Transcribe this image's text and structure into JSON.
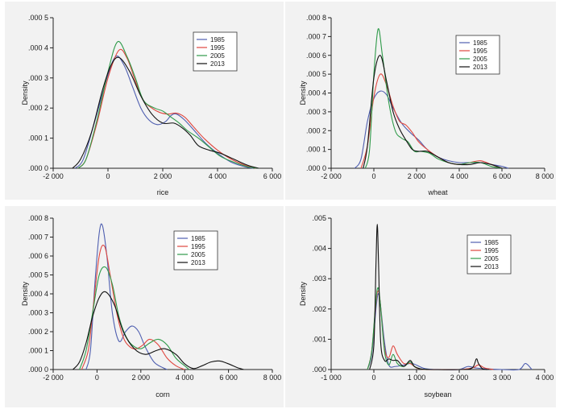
{
  "series_colors": {
    "1985": "#4f5fb0",
    "1995": "#e0463e",
    "2005": "#2e9a49",
    "2013": "#111111"
  },
  "chart_data": [
    {
      "type": "line",
      "title": "",
      "xlabel": "rice",
      "ylabel": "Density",
      "xlim": [
        -2000,
        6000
      ],
      "ylim": [
        0,
        0.0005
      ],
      "xticks": [
        -2000,
        0,
        2000,
        4000,
        6000
      ],
      "xtick_labels": [
        "-2 000",
        "0",
        "2 000",
        "4 000",
        "6 000"
      ],
      "yticks": [
        0,
        0.0001,
        0.0002,
        0.0003,
        0.0004,
        0.0005
      ],
      "ytick_labels": [
        ".000 0",
        ".000 1",
        ".000 2",
        ".000 3",
        ".000 4",
        ".000 5"
      ],
      "legend": [
        "1985",
        "1995",
        "2005",
        "2013"
      ],
      "series": [
        {
          "name": "1985",
          "x": [
            -1200,
            -900,
            -500,
            0,
            300,
            600,
            900,
            1200,
            1500,
            1800,
            2100,
            2300,
            2500,
            2800,
            3200,
            3600,
            4000,
            4500,
            5000,
            5300
          ],
          "y": [
            0,
            3e-05,
            0.00015,
            0.00031,
            0.000372,
            0.00034,
            0.00027,
            0.0002,
            0.00016,
            0.000145,
            0.000155,
            0.000175,
            0.00018,
            0.00016,
            0.00012,
            8e-05,
            5e-05,
            2e-05,
            5e-06,
            0
          ]
        },
        {
          "name": "1995",
          "x": [
            -1100,
            -800,
            -400,
            0,
            400,
            700,
            1000,
            1300,
            1600,
            1900,
            2200,
            2500,
            2800,
            3100,
            3500,
            4000,
            4500,
            5000,
            5400
          ],
          "y": [
            0,
            3e-05,
            0.00015,
            0.0003,
            0.000392,
            0.000365,
            0.00029,
            0.000225,
            0.0002,
            0.000185,
            0.00018,
            0.000183,
            0.00017,
            0.00014,
            0.0001,
            6e-05,
            3e-05,
            1e-05,
            0
          ]
        },
        {
          "name": "2005",
          "x": [
            -1100,
            -800,
            -400,
            0,
            350,
            700,
            1000,
            1300,
            1700,
            2000,
            2300,
            2600,
            2900,
            3300,
            3700,
            4100,
            4600,
            5100,
            5500
          ],
          "y": [
            0,
            3e-05,
            0.00016,
            0.00032,
            0.00042,
            0.00037,
            0.0003,
            0.000225,
            0.0002,
            0.00019,
            0.00017,
            0.00015,
            0.000125,
            0.0001,
            7e-05,
            4e-05,
            2e-05,
            5e-06,
            0
          ]
        },
        {
          "name": "2013",
          "x": [
            -1300,
            -1000,
            -600,
            -200,
            100,
            400,
            800,
            1200,
            1600,
            2000,
            2400,
            2700,
            3000,
            3300,
            3700,
            4100,
            4600,
            5100,
            5500
          ],
          "y": [
            0,
            3e-05,
            0.00012,
            0.00026,
            0.00034,
            0.000368,
            0.00032,
            0.00024,
            0.00018,
            0.00015,
            0.00015,
            0.000135,
            0.00011,
            7.5e-05,
            6e-05,
            5e-05,
            3e-05,
            1e-05,
            0
          ]
        }
      ]
    },
    {
      "type": "line",
      "title": "",
      "xlabel": "wheat",
      "ylabel": "Density",
      "xlim": [
        -2000,
        8000
      ],
      "ylim": [
        0,
        0.0008
      ],
      "xticks": [
        -2000,
        0,
        2000,
        4000,
        6000,
        8000
      ],
      "xtick_labels": [
        "-2 000",
        "0",
        "2 000",
        "4 000",
        "6 000",
        "8 000"
      ],
      "yticks": [
        0,
        0.0001,
        0.0002,
        0.0003,
        0.0004,
        0.0005,
        0.0006,
        0.0007,
        0.0008
      ],
      "ytick_labels": [
        ".000 0",
        ".000 1",
        ".000 2",
        ".000 3",
        ".000 4",
        ".000 5",
        ".000 6",
        ".000 7",
        ".000 8"
      ],
      "legend": [
        "1985",
        "1995",
        "2005",
        "2013"
      ],
      "series": [
        {
          "name": "1985",
          "x": [
            -900,
            -600,
            -300,
            0,
            300,
            600,
            900,
            1300,
            1700,
            2100,
            2500,
            3000,
            3500,
            4000,
            4500,
            5000,
            5500,
            6000,
            6300
          ],
          "y": [
            0,
            5e-05,
            0.00025,
            0.00037,
            0.00041,
            0.00039,
            0.00032,
            0.00024,
            0.00019,
            0.00015,
            0.0001,
            6e-05,
            4e-05,
            3e-05,
            3e-05,
            3e-05,
            2e-05,
            1e-05,
            0
          ]
        },
        {
          "name": "1995",
          "x": [
            -600,
            -300,
            0,
            300,
            600,
            900,
            1200,
            1500,
            1800,
            2100,
            2500,
            3000,
            3500,
            4000,
            4500,
            5000,
            5500,
            6000
          ],
          "y": [
            0,
            0.00012,
            0.00038,
            0.0005,
            0.00044,
            0.00033,
            0.00025,
            0.00023,
            0.00019,
            0.00014,
            0.0001,
            6e-05,
            3e-05,
            2e-05,
            3e-05,
            4e-05,
            2e-05,
            0
          ]
        },
        {
          "name": "2005",
          "x": [
            -400,
            -200,
            0,
            200,
            400,
            700,
            1000,
            1300,
            1600,
            1900,
            2200,
            2600,
            3000,
            3500,
            4000,
            4500,
            5000,
            5500,
            6000
          ],
          "y": [
            0,
            0.0001,
            0.0005,
            0.00074,
            0.0006,
            0.00035,
            0.0002,
            0.00016,
            0.00014,
            9e-05,
            9e-05,
            8e-05,
            5e-05,
            3e-05,
            2e-05,
            3e-05,
            3e-05,
            1e-05,
            0
          ]
        },
        {
          "name": "2013",
          "x": [
            -500,
            -300,
            0,
            300,
            600,
            900,
            1200,
            1500,
            1800,
            2100,
            2500,
            3000,
            3500,
            4000,
            4500,
            5000,
            5500,
            6000
          ],
          "y": [
            0,
            0.00012,
            0.00048,
            0.0006,
            0.00046,
            0.0003,
            0.00021,
            0.00015,
            0.0001,
            9e-05,
            9e-05,
            6e-05,
            3e-05,
            2e-05,
            2e-05,
            3e-05,
            2e-05,
            0
          ]
        }
      ]
    },
    {
      "type": "line",
      "title": "",
      "xlabel": "corn",
      "ylabel": "Density",
      "xlim": [
        -2000,
        8000
      ],
      "ylim": [
        0,
        0.0008
      ],
      "xticks": [
        -2000,
        0,
        2000,
        4000,
        6000,
        8000
      ],
      "xtick_labels": [
        "-2 000",
        "0",
        "2 000",
        "4 000",
        "6 000",
        "8 000"
      ],
      "yticks": [
        0,
        0.0001,
        0.0002,
        0.0003,
        0.0004,
        0.0005,
        0.0006,
        0.0007,
        0.0008
      ],
      "ytick_labels": [
        ".000 0",
        ".000 1",
        ".000 2",
        ".000 3",
        ".000 4",
        ".000 5",
        ".000 6",
        ".000 7",
        ".000 8"
      ],
      "legend": [
        "1985",
        "1995",
        "2005",
        "2013"
      ],
      "series": [
        {
          "name": "1985",
          "x": [
            -500,
            -300,
            -100,
            100,
            250,
            450,
            700,
            1000,
            1300,
            1600,
            1900,
            2200,
            2600,
            3000,
            3200
          ],
          "y": [
            0,
            0.0001,
            0.00045,
            0.00072,
            0.00076,
            0.0006,
            0.0003,
            0.00015,
            0.0002,
            0.00023,
            0.0002,
            0.00012,
            4e-05,
            1e-05,
            0
          ]
        },
        {
          "name": "1995",
          "x": [
            -700,
            -400,
            -200,
            100,
            350,
            600,
            900,
            1200,
            1500,
            1800,
            2100,
            2400,
            2800,
            3200,
            3600,
            4000
          ],
          "y": [
            0,
            0.0001,
            0.0003,
            0.0006,
            0.00065,
            0.0005,
            0.0003,
            0.00017,
            0.00012,
            0.00011,
            0.00013,
            0.00016,
            0.00013,
            6e-05,
            2e-05,
            0
          ]
        },
        {
          "name": "2005",
          "x": [
            -800,
            -500,
            -200,
            100,
            400,
            700,
            1000,
            1300,
            1600,
            2000,
            2400,
            2800,
            3200,
            3600,
            4000,
            4200
          ],
          "y": [
            0,
            0.0001,
            0.0003,
            0.0005,
            0.00054,
            0.00045,
            0.00028,
            0.00018,
            0.00013,
            0.00011,
            0.00014,
            0.00016,
            0.00013,
            6e-05,
            2e-05,
            0
          ]
        },
        {
          "name": "2013",
          "x": [
            -1100,
            -800,
            -500,
            -200,
            100,
            400,
            800,
            1200,
            1700,
            2200,
            2700,
            3100,
            3600,
            4000,
            4400,
            4800,
            5200,
            5600,
            6000,
            6400,
            6700
          ],
          "y": [
            0,
            4e-05,
            0.00014,
            0.00028,
            0.00038,
            0.00041,
            0.00034,
            0.0002,
            0.00011,
            8e-05,
            0.0001,
            0.00011,
            8e-05,
            3e-05,
            5e-06,
            2e-05,
            4e-05,
            4.5e-05,
            3e-05,
            1e-05,
            0
          ]
        }
      ]
    },
    {
      "type": "line",
      "title": "",
      "xlabel": "soybean",
      "ylabel": "Density",
      "xlim": [
        -1000,
        4000
      ],
      "ylim": [
        0,
        0.005
      ],
      "xticks": [
        -1000,
        0,
        1000,
        2000,
        3000,
        4000
      ],
      "xtick_labels": [
        "-1 000",
        "0",
        "1 000",
        "2 000",
        "3 000",
        "4 000"
      ],
      "yticks": [
        0,
        0.001,
        0.002,
        0.003,
        0.004,
        0.005
      ],
      "ytick_labels": [
        ".000",
        ".001",
        ".002",
        ".003",
        ".004",
        ".005"
      ],
      "legend": [
        "1985",
        "1995",
        "2005",
        "2013"
      ],
      "series": [
        {
          "name": "1985",
          "x": [
            -150,
            -50,
            50,
            100,
            150,
            250,
            350,
            500,
            700,
            900,
            1200,
            1600,
            2000,
            2200,
            2400,
            2700,
            3000,
            3400,
            3550,
            3700
          ],
          "y": [
            0,
            0.0005,
            0.002,
            0.0025,
            0.0022,
            0.0009,
            0.00015,
            0.0001,
            0.00015,
            0.0002,
            3e-05,
            0,
            0,
            0.0001,
            5e-05,
            2e-05,
            0,
            0,
            0.0002,
            0
          ]
        },
        {
          "name": "1995",
          "x": [
            -150,
            -50,
            50,
            100,
            150,
            250,
            350,
            450,
            550,
            700,
            850,
            1000,
            1200,
            1500,
            2000,
            2300,
            2450,
            2600,
            2800
          ],
          "y": [
            0,
            0.0006,
            0.0022,
            0.0026,
            0.0022,
            0.0007,
            0.0004,
            0.00078,
            0.0005,
            0.0002,
            0.0002,
            5e-05,
            0,
            0,
            0,
            5e-05,
            0.00015,
            5e-05,
            0
          ]
        },
        {
          "name": "2005",
          "x": [
            -150,
            -50,
            50,
            100,
            150,
            250,
            350,
            450,
            550,
            700,
            850,
            950,
            1100,
            1300
          ],
          "y": [
            0,
            0.0006,
            0.0023,
            0.0027,
            0.0022,
            0.0006,
            0.00015,
            0.0005,
            0.0002,
            0.0001,
            0.00025,
            0.0001,
            2e-05,
            0
          ]
        },
        {
          "name": "2013",
          "x": [
            -100,
            0,
            50,
            80,
            110,
            160,
            250,
            350,
            450,
            550,
            700,
            850,
            950,
            1100,
            1300,
            2000,
            2300,
            2400,
            2450,
            2550,
            2700
          ],
          "y": [
            0,
            0.0008,
            0.0035,
            0.0048,
            0.0035,
            0.0009,
            0.0003,
            0.00035,
            0.0003,
            0.0003,
            0.0001,
            0.0003,
            0.0001,
            2e-05,
            0,
            0,
            5e-05,
            0.00035,
            0.0002,
            2e-05,
            0
          ]
        }
      ]
    }
  ]
}
